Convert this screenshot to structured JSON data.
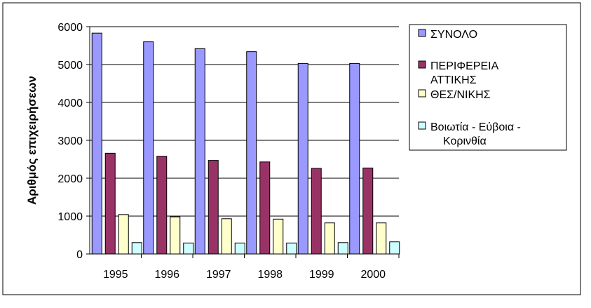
{
  "chart_data": {
    "type": "bar",
    "title": "",
    "xlabel": "",
    "ylabel": "Αριθμός επιχειρήσεων",
    "ylim": [
      0,
      6000
    ],
    "yticks": [
      0,
      1000,
      2000,
      3000,
      4000,
      5000,
      6000
    ],
    "grid": "horizontal",
    "legend_position": "right",
    "categories": [
      "1995",
      "1996",
      "1997",
      "1998",
      "1999",
      "2000"
    ],
    "series": [
      {
        "name": "ΣΥΝΟΛΟ",
        "color": "#9999FF",
        "values": [
          5830,
          5600,
          5420,
          5340,
          5030,
          5030
        ]
      },
      {
        "name": "ΠΕΡΙΦΕΡΕΙΑ ΑΤΤΙΚΗΣ",
        "color": "#993366",
        "values": [
          2660,
          2580,
          2470,
          2430,
          2260,
          2270
        ]
      },
      {
        "name": "ΘΕΣ/ΝΙΚΗΣ",
        "color": "#FFFFCC",
        "values": [
          1040,
          980,
          930,
          920,
          820,
          820
        ]
      },
      {
        "name": "Βοιωτία - Εύβοια - Κορινθία",
        "color": "#CCFFFF",
        "values": [
          300,
          290,
          290,
          290,
          300,
          320
        ]
      }
    ]
  }
}
